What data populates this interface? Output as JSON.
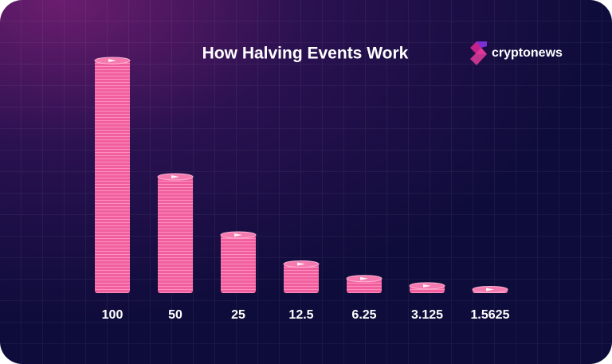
{
  "chart_data": {
    "type": "bar",
    "title": "How Halving Events Work",
    "values": [
      100,
      50,
      25,
      12.5,
      6.25,
      3.125,
      1.5625
    ],
    "color": "#f0609e"
  },
  "logo": {
    "text": "cryptonews"
  }
}
